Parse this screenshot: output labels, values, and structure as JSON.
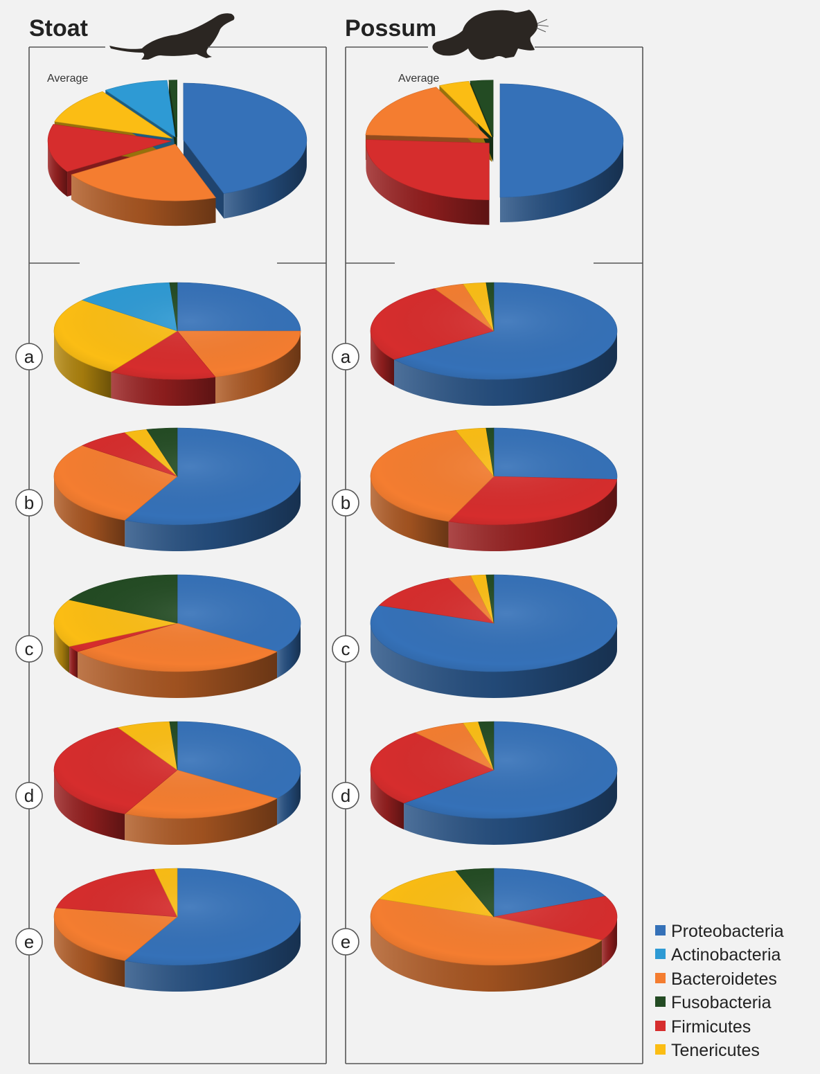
{
  "panels": [
    {
      "title": "Stoat",
      "icon": "stoat-silhouette-icon"
    },
    {
      "title": "Possum",
      "icon": "possum-silhouette-icon"
    }
  ],
  "average_label": "Average",
  "row_letters": [
    "a",
    "b",
    "c",
    "d",
    "e"
  ],
  "colors": {
    "Proteobacteria": "#3571b8",
    "Actinobacteria": "#2e9ad4",
    "Bacteroidetes": "#f47d30",
    "Fusobacteria": "#234b23",
    "Firmicutes": "#d62d2d",
    "Tenericutes": "#fbbd14"
  },
  "legend": [
    "Proteobacteria",
    "Actinobacteria",
    "Bacteroidetes",
    "Fusobacteria",
    "Firmicutes",
    "Tenericutes"
  ],
  "chart_data": [
    {
      "type": "pie",
      "animal": "Stoat",
      "sample": "Average",
      "exploded": true,
      "slices": [
        {
          "label": "Proteobacteria",
          "value": 42
        },
        {
          "label": "Bacteroidetes",
          "value": 20
        },
        {
          "label": "Firmicutes",
          "value": 13
        },
        {
          "label": "Tenericutes",
          "value": 10
        },
        {
          "label": "Actinobacteria",
          "value": 8
        },
        {
          "label": "Fusobacteria",
          "value": 1
        }
      ]
    },
    {
      "type": "pie",
      "animal": "Stoat",
      "sample": "a",
      "slices": [
        {
          "label": "Proteobacteria",
          "value": 25
        },
        {
          "label": "Bacteroidetes",
          "value": 20
        },
        {
          "label": "Firmicutes",
          "value": 14
        },
        {
          "label": "Tenericutes",
          "value": 27
        },
        {
          "label": "Actinobacteria",
          "value": 13
        },
        {
          "label": "Fusobacteria",
          "value": 1
        }
      ]
    },
    {
      "type": "pie",
      "animal": "Stoat",
      "sample": "b",
      "slices": [
        {
          "label": "Proteobacteria",
          "value": 57
        },
        {
          "label": "Bacteroidetes",
          "value": 29
        },
        {
          "label": "Firmicutes",
          "value": 7
        },
        {
          "label": "Tenericutes",
          "value": 3
        },
        {
          "label": "Fusobacteria",
          "value": 4
        }
      ]
    },
    {
      "type": "pie",
      "animal": "Stoat",
      "sample": "c",
      "slices": [
        {
          "label": "Proteobacteria",
          "value": 35
        },
        {
          "label": "Bacteroidetes",
          "value": 30
        },
        {
          "label": "Firmicutes",
          "value": 2
        },
        {
          "label": "Tenericutes",
          "value": 16
        },
        {
          "label": "Fusobacteria",
          "value": 17
        }
      ]
    },
    {
      "type": "pie",
      "animal": "Stoat",
      "sample": "d",
      "slices": [
        {
          "label": "Proteobacteria",
          "value": 35
        },
        {
          "label": "Bacteroidetes",
          "value": 22
        },
        {
          "label": "Firmicutes",
          "value": 35
        },
        {
          "label": "Tenericutes",
          "value": 7
        },
        {
          "label": "Fusobacteria",
          "value": 1
        }
      ]
    },
    {
      "type": "pie",
      "animal": "Stoat",
      "sample": "e",
      "slices": [
        {
          "label": "Proteobacteria",
          "value": 57
        },
        {
          "label": "Bacteroidetes",
          "value": 21
        },
        {
          "label": "Firmicutes",
          "value": 19
        },
        {
          "label": "Tenericutes",
          "value": 3
        }
      ]
    },
    {
      "type": "pie",
      "animal": "Possum",
      "sample": "Average",
      "exploded": true,
      "slices": [
        {
          "label": "Proteobacteria",
          "value": 50
        },
        {
          "label": "Firmicutes",
          "value": 26
        },
        {
          "label": "Bacteroidetes",
          "value": 17
        },
        {
          "label": "Tenericutes",
          "value": 4
        },
        {
          "label": "Fusobacteria",
          "value": 3
        }
      ]
    },
    {
      "type": "pie",
      "animal": "Possum",
      "sample": "a",
      "slices": [
        {
          "label": "Proteobacteria",
          "value": 65
        },
        {
          "label": "Firmicutes",
          "value": 27
        },
        {
          "label": "Bacteroidetes",
          "value": 4
        },
        {
          "label": "Tenericutes",
          "value": 3
        },
        {
          "label": "Fusobacteria",
          "value": 1
        }
      ]
    },
    {
      "type": "pie",
      "animal": "Possum",
      "sample": "b",
      "slices": [
        {
          "label": "Proteobacteria",
          "value": 26
        },
        {
          "label": "Firmicutes",
          "value": 30
        },
        {
          "label": "Bacteroidetes",
          "value": 39
        },
        {
          "label": "Tenericutes",
          "value": 4
        },
        {
          "label": "Fusobacteria",
          "value": 1
        }
      ]
    },
    {
      "type": "pie",
      "animal": "Possum",
      "sample": "c",
      "slices": [
        {
          "label": "Proteobacteria",
          "value": 81
        },
        {
          "label": "Firmicutes",
          "value": 13
        },
        {
          "label": "Bacteroidetes",
          "value": 3
        },
        {
          "label": "Tenericutes",
          "value": 2
        },
        {
          "label": "Fusobacteria",
          "value": 1
        }
      ]
    },
    {
      "type": "pie",
      "animal": "Possum",
      "sample": "d",
      "slices": [
        {
          "label": "Proteobacteria",
          "value": 63
        },
        {
          "label": "Firmicutes",
          "value": 26
        },
        {
          "label": "Bacteroidetes",
          "value": 7
        },
        {
          "label": "Tenericutes",
          "value": 2
        },
        {
          "label": "Fusobacteria",
          "value": 2
        }
      ]
    },
    {
      "type": "pie",
      "animal": "Possum",
      "sample": "e",
      "slices": [
        {
          "label": "Proteobacteria",
          "value": 18
        },
        {
          "label": "Firmicutes",
          "value": 15
        },
        {
          "label": "Bacteroidetes",
          "value": 48
        },
        {
          "label": "Tenericutes",
          "value": 14
        },
        {
          "label": "Fusobacteria",
          "value": 5
        }
      ]
    }
  ]
}
